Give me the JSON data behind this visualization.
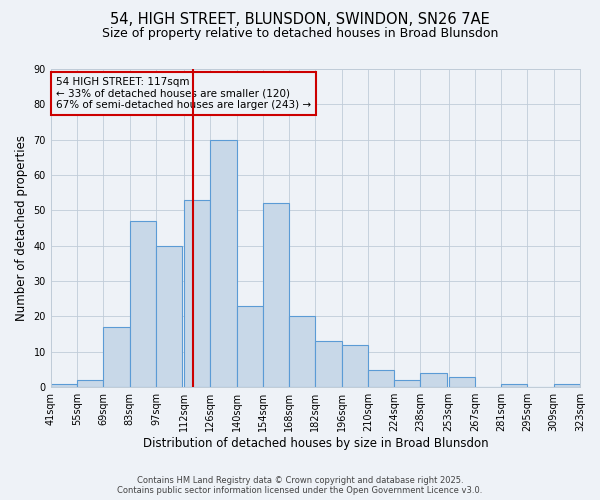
{
  "title": "54, HIGH STREET, BLUNSDON, SWINDON, SN26 7AE",
  "subtitle": "Size of property relative to detached houses in Broad Blunsdon",
  "xlabel": "Distribution of detached houses by size in Broad Blunsdon",
  "ylabel": "Number of detached properties",
  "bin_labels": [
    "41sqm",
    "55sqm",
    "69sqm",
    "83sqm",
    "97sqm",
    "112sqm",
    "126sqm",
    "140sqm",
    "154sqm",
    "168sqm",
    "182sqm",
    "196sqm",
    "210sqm",
    "224sqm",
    "238sqm",
    "253sqm",
    "267sqm",
    "281sqm",
    "295sqm",
    "309sqm",
    "323sqm"
  ],
  "bin_edges": [
    41,
    55,
    69,
    83,
    97,
    112,
    126,
    140,
    154,
    168,
    182,
    196,
    210,
    224,
    238,
    253,
    267,
    281,
    295,
    309,
    323
  ],
  "bar_values": [
    1,
    2,
    17,
    47,
    40,
    53,
    70,
    23,
    52,
    20,
    13,
    12,
    5,
    2,
    4,
    3,
    0,
    1,
    0,
    1
  ],
  "bar_facecolor": "#c8d8e8",
  "bar_edgecolor": "#5b9bd5",
  "vline_x": 117,
  "vline_color": "#cc0000",
  "ylim": [
    0,
    90
  ],
  "yticks": [
    0,
    10,
    20,
    30,
    40,
    50,
    60,
    70,
    80,
    90
  ],
  "annotation_title": "54 HIGH STREET: 117sqm",
  "annotation_line1": "← 33% of detached houses are smaller (120)",
  "annotation_line2": "67% of semi-detached houses are larger (243) →",
  "annotation_box_edgecolor": "#cc0000",
  "footnote1": "Contains HM Land Registry data © Crown copyright and database right 2025.",
  "footnote2": "Contains public sector information licensed under the Open Government Licence v3.0.",
  "bg_color": "#eef2f7",
  "grid_color": "#c0ccd8",
  "title_fontsize": 10.5,
  "subtitle_fontsize": 9,
  "axis_label_fontsize": 8.5,
  "tick_fontsize": 7,
  "annotation_fontsize": 7.5,
  "footnote_fontsize": 6
}
